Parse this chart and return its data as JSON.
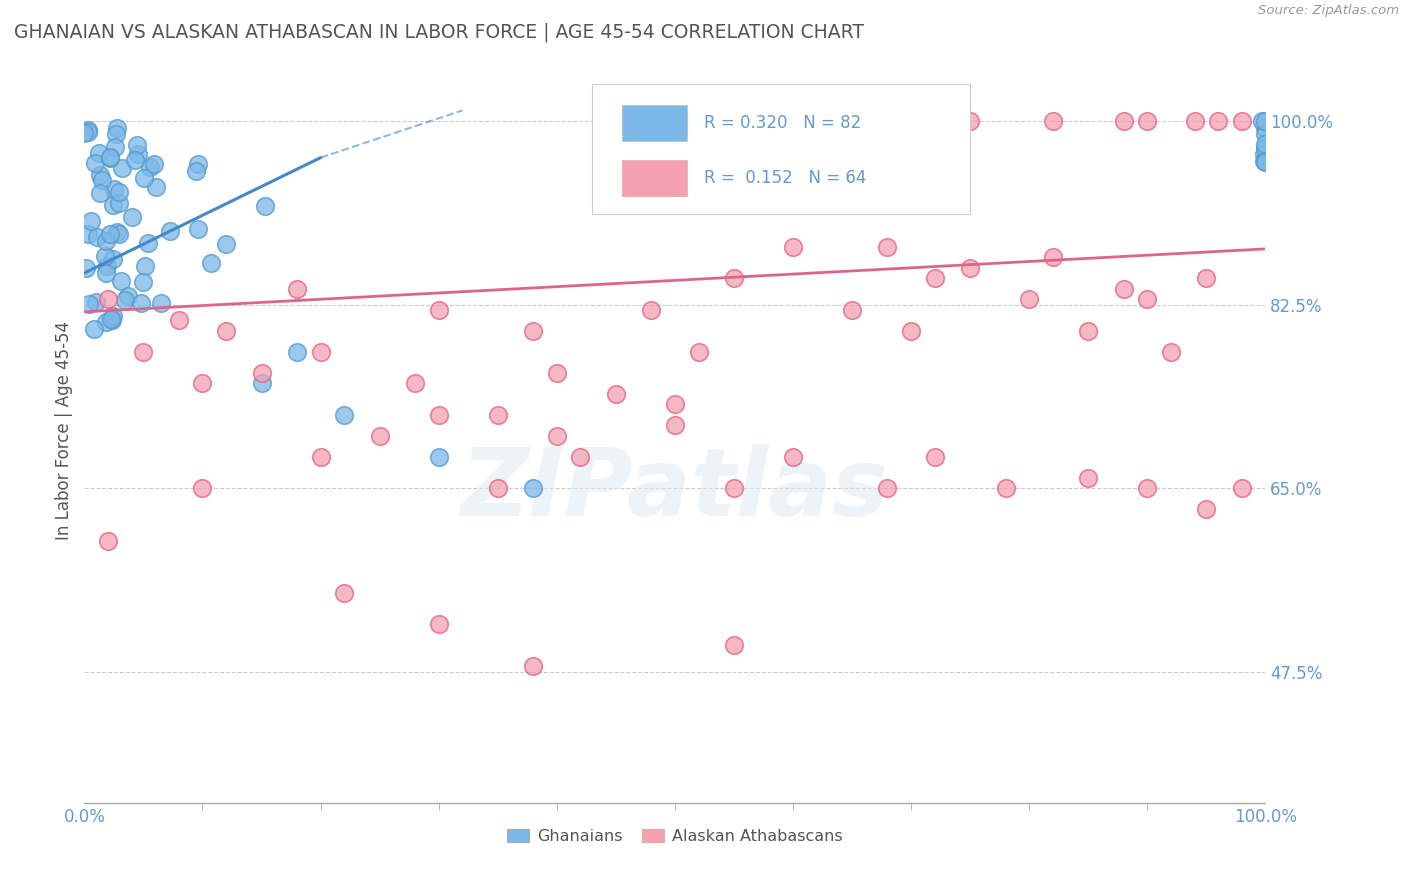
{
  "title": "GHANAIAN VS ALASKAN ATHABASCAN IN LABOR FORCE | AGE 45-54 CORRELATION CHART",
  "source": "Source: ZipAtlas.com",
  "ylabel": "In Labor Force | Age 45-54",
  "xlim": [
    0.0,
    1.0
  ],
  "ylim": [
    0.35,
    1.06
  ],
  "yticks": [
    0.475,
    0.65,
    0.825,
    1.0
  ],
  "ytick_labels": [
    "47.5%",
    "65.0%",
    "82.5%",
    "100.0%"
  ],
  "xtick_labels": [
    "0.0%",
    "100.0%"
  ],
  "xticks": [
    0.0,
    1.0
  ],
  "blue_R": 0.32,
  "blue_N": 82,
  "pink_R": 0.152,
  "pink_N": 64,
  "blue_color": "#7ab8e8",
  "pink_color": "#f4a0b0",
  "blue_edge_color": "#5599cc",
  "pink_edge_color": "#e06080",
  "blue_line_color": "#4488cc",
  "pink_line_color": "#dd6688",
  "legend_blue_label": "Ghanaians",
  "legend_pink_label": "Alaskan Athabascans",
  "watermark_text": "ZIPatlas",
  "background_color": "#ffffff",
  "grid_color": "#cccccc",
  "title_color": "#555555",
  "axis_tick_color": "#6699cc",
  "ylabel_color": "#555555"
}
